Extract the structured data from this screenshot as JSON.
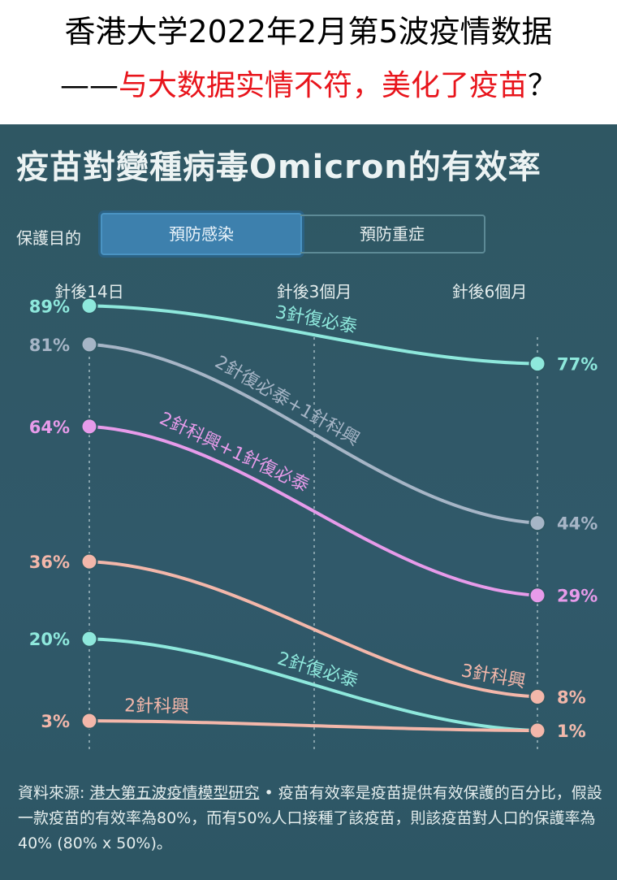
{
  "header": {
    "line1": "香港大学2022年2月第5波疫情数据",
    "line2_dash": "——",
    "line2_red": "与大数据实情不符，美化了疫苗",
    "line2_q": "？"
  },
  "panel": {
    "title": "疫苗對變種病毒Omicron的有效率",
    "purpose_label": "保護目的",
    "tabs": [
      {
        "label": "預防感染",
        "active": true
      },
      {
        "label": "預防重症",
        "active": false
      }
    ]
  },
  "source": {
    "prefix": "資料來源: ",
    "link": "港大第五波疫情模型研究",
    "text": " • 疫苗有效率是疫苗提供有效保護的百分比，假設一款疫苗的有效率為80%，而有50%人口接種了該疫苗，則該疫苗對人口的保護率為40% (80% x 50%)。"
  },
  "chart_data": {
    "type": "line",
    "x": [
      "針後14日",
      "針後3個月",
      "針後6個月"
    ],
    "ylim": [
      0,
      100
    ],
    "series": [
      {
        "name": "3針復必泰",
        "color": "#8ee8dc",
        "values": [
          89,
          null,
          77
        ],
        "label_at": 0.5
      },
      {
        "name": "2針復必泰+1針科興",
        "color": "#a6b5c6",
        "values": [
          81,
          null,
          44
        ],
        "label_at": 0.42
      },
      {
        "name": "2針科興+1針復必泰",
        "color": "#e79bea",
        "values": [
          64,
          null,
          29
        ],
        "label_at": 0.3
      },
      {
        "name": "3針科興",
        "color": "#f3b7aa",
        "values": [
          36,
          null,
          8
        ],
        "label_at": 0.9
      },
      {
        "name": "2針復必泰",
        "color": "#8ee8dc",
        "values": [
          20,
          null,
          1
        ],
        "label_at": 0.5
      },
      {
        "name": "2針科興",
        "color": "#f3b7aa",
        "values": [
          3,
          null,
          1
        ],
        "label_at": 0.15
      }
    ]
  }
}
